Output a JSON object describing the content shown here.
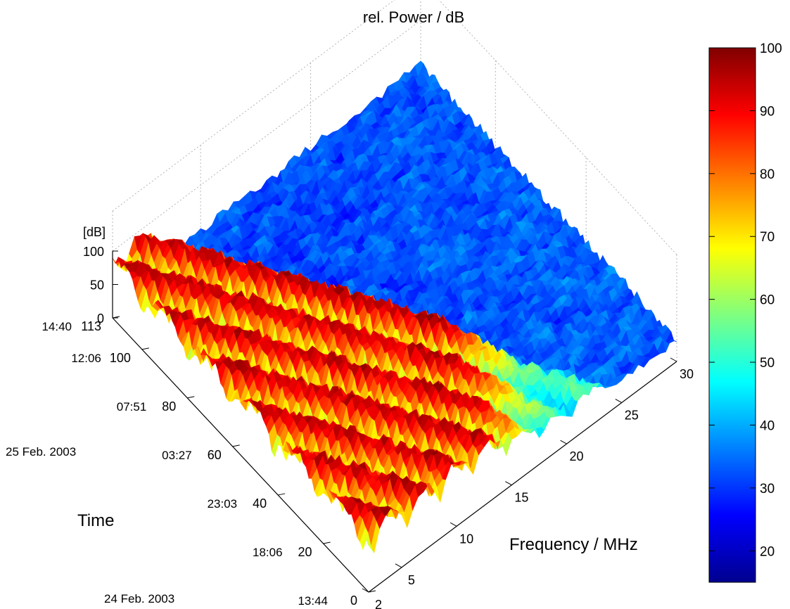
{
  "chart_data": {
    "type": "surface",
    "title": "rel. Power / dB",
    "zlabel": "[dB]",
    "xlabel": "Frequency / MHz",
    "ylabel": "Time",
    "x_ticks": [
      "2",
      "5",
      "10",
      "15",
      "20",
      "25",
      "30"
    ],
    "x_range": [
      2,
      30
    ],
    "y_ticks": [
      "0",
      "20",
      "40",
      "60",
      "80",
      "100",
      "113"
    ],
    "y_range": [
      0,
      113
    ],
    "y_time_labels": [
      "13:44",
      "18:06",
      "23:03",
      "03:27",
      "07:51",
      "12:06",
      "14:40"
    ],
    "y_date_labels": [
      "24 Feb. 2003",
      "25 Feb. 2003"
    ],
    "z_ticks": [
      "0",
      "50",
      "100"
    ],
    "z_range": [
      0,
      100
    ],
    "colorbar_ticks": [
      "20",
      "30",
      "40",
      "50",
      "60",
      "70",
      "80",
      "90",
      "100"
    ],
    "colorbar_range": [
      15,
      100
    ],
    "colormap": "jet",
    "grid": true,
    "legend": "colorbar-right"
  }
}
